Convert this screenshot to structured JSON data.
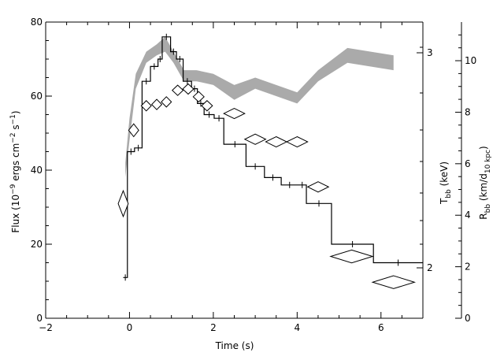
{
  "chart_data": {
    "type": "line",
    "xlabel": "Time (s)",
    "ylabel_left": "Flux (10^-9 ergs cm^-2 s^-1)",
    "ylabel_right_inner": "T_bb (keV)",
    "ylabel_right_outer": "R_bb (km/d_10 kpc)",
    "xlim": [
      -2,
      7
    ],
    "ylim_left": [
      0,
      80
    ],
    "ylim_right_outer": [
      0,
      11.5
    ],
    "x_ticks": [
      -2,
      0,
      2,
      4,
      6
    ],
    "y_left_ticks": [
      0,
      20,
      40,
      60,
      80
    ],
    "y_right_inner_ticks": [
      2,
      3
    ],
    "y_right_outer_ticks": [
      0,
      2,
      4,
      6,
      8,
      10
    ],
    "grid": false,
    "flux_steps": [
      [
        -0.15,
        11
      ],
      [
        -0.05,
        45
      ],
      [
        0.12,
        46
      ],
      [
        0.3,
        64
      ],
      [
        0.5,
        68
      ],
      [
        0.68,
        70
      ],
      [
        0.78,
        76
      ],
      [
        0.98,
        72
      ],
      [
        1.12,
        70
      ],
      [
        1.28,
        64
      ],
      [
        1.48,
        62
      ],
      [
        1.62,
        58
      ],
      [
        1.78,
        55
      ],
      [
        2.02,
        54
      ],
      [
        2.25,
        47
      ],
      [
        2.78,
        41
      ],
      [
        3.22,
        38
      ],
      [
        3.62,
        36
      ],
      [
        4.02,
        36
      ],
      [
        4.22,
        31
      ],
      [
        4.82,
        20
      ],
      [
        5.82,
        15
      ],
      [
        7.0,
        15
      ]
    ],
    "flux_step_end": 7.0,
    "temperature_band": {
      "x": [
        -0.1,
        0.0,
        0.15,
        0.4,
        0.65,
        0.85,
        1.05,
        1.3,
        1.6,
        2.0,
        2.5,
        3.0,
        3.5,
        4.0,
        4.5,
        5.2,
        6.3
      ],
      "upper": [
        42,
        54,
        66,
        72,
        74,
        76,
        72,
        67,
        67,
        66,
        63,
        65,
        63,
        61,
        67,
        73,
        71
      ],
      "lower": [
        38,
        48,
        62,
        69,
        71,
        72,
        69,
        64,
        64,
        63,
        59,
        62,
        60,
        58,
        64,
        69,
        67
      ]
    },
    "radius_points": [
      {
        "x": -0.15,
        "y": 4.45,
        "xerr": 0.12,
        "yerr": 0.5
      },
      {
        "x": 0.1,
        "y": 7.3,
        "xerr": 0.12,
        "yerr": 0.25
      },
      {
        "x": 0.4,
        "y": 8.25,
        "xerr": 0.12,
        "yerr": 0.2
      },
      {
        "x": 0.65,
        "y": 8.3,
        "xerr": 0.12,
        "yerr": 0.2
      },
      {
        "x": 0.88,
        "y": 8.4,
        "xerr": 0.12,
        "yerr": 0.2
      },
      {
        "x": 1.15,
        "y": 8.85,
        "xerr": 0.13,
        "yerr": 0.2
      },
      {
        "x": 1.4,
        "y": 8.9,
        "xerr": 0.13,
        "yerr": 0.2
      },
      {
        "x": 1.65,
        "y": 8.6,
        "xerr": 0.13,
        "yerr": 0.2
      },
      {
        "x": 1.85,
        "y": 8.25,
        "xerr": 0.13,
        "yerr": 0.2
      },
      {
        "x": 2.5,
        "y": 7.95,
        "xerr": 0.25,
        "yerr": 0.2
      },
      {
        "x": 3.0,
        "y": 6.95,
        "xerr": 0.25,
        "yerr": 0.2
      },
      {
        "x": 3.5,
        "y": 6.85,
        "xerr": 0.25,
        "yerr": 0.2
      },
      {
        "x": 4.0,
        "y": 6.85,
        "xerr": 0.25,
        "yerr": 0.2
      },
      {
        "x": 4.5,
        "y": 5.1,
        "xerr": 0.25,
        "yerr": 0.2
      },
      {
        "x": 5.3,
        "y": 2.4,
        "xerr": 0.5,
        "yerr": 0.25
      },
      {
        "x": 6.3,
        "y": 1.4,
        "xerr": 0.5,
        "yerr": 0.25
      }
    ],
    "colors": {
      "axes": "#000000",
      "flux": "#000000",
      "temperature_band": "#aaaaaa",
      "radius_markers": "#000000"
    }
  }
}
